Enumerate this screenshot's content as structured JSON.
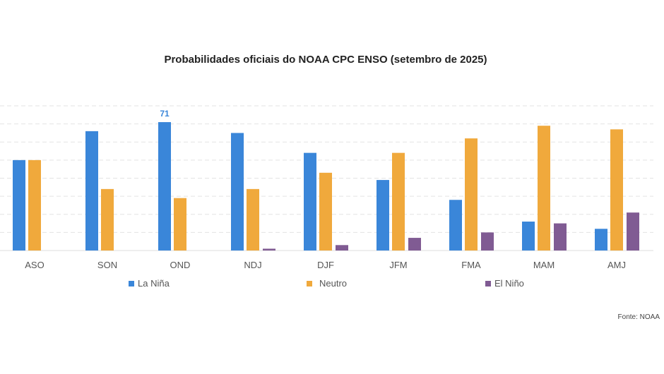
{
  "chart_data": {
    "type": "bar",
    "title": "Probabilidades oficiais do NOAA CPC ENSO (setembro de 2025)",
    "categories": [
      "ASO",
      "SON",
      "OND",
      "NDJ",
      "DJF",
      "JFM",
      "FMA",
      "MAM",
      "AMJ"
    ],
    "series": [
      {
        "name": "La Niña",
        "color": "#3a86d9",
        "values": [
          50,
          66,
          71,
          65,
          54,
          39,
          28,
          16,
          12
        ]
      },
      {
        "name": "Neutro",
        "color": "#f0a93c",
        "values": [
          50,
          34,
          29,
          34,
          43,
          54,
          62,
          69,
          67
        ]
      },
      {
        "name": "El Niño",
        "color": "#805b93",
        "values": [
          0,
          0,
          0,
          1,
          3,
          7,
          10,
          15,
          21
        ]
      }
    ],
    "data_labels": [
      {
        "series": 0,
        "category": "OND",
        "text": "71"
      }
    ],
    "ylim": [
      0,
      80
    ],
    "grid": true,
    "legend_position": "bottom",
    "source": "Fonte: NOAA"
  }
}
